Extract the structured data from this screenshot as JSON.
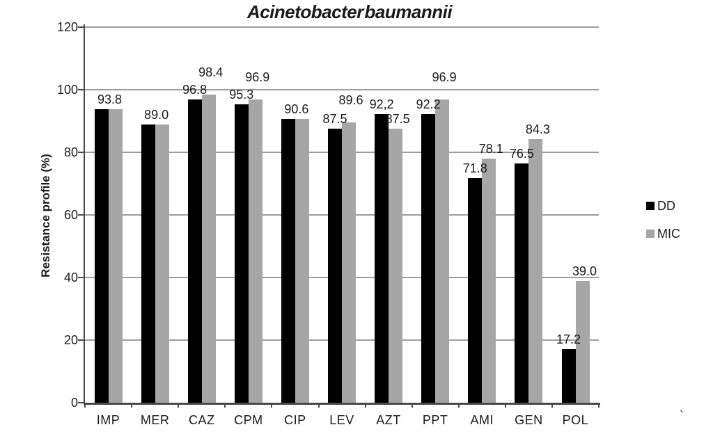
{
  "chart_data": {
    "type": "bar",
    "title": "Acinetobacter baumannii",
    "xlabel": "",
    "ylabel": "Resistance profile (%)",
    "ylim": [
      0,
      120
    ],
    "yticks": [
      0,
      20,
      40,
      60,
      80,
      100,
      120
    ],
    "grid": true,
    "legend_position": "right",
    "categories": [
      "IMP",
      "MER",
      "CAZ",
      "CPM",
      "CIP",
      "LEV",
      "AZT",
      "PPT",
      "AMI",
      "GEN",
      "POL"
    ],
    "series": [
      {
        "name": "DD",
        "color": "#000000",
        "values": [
          93.8,
          89.0,
          96.8,
          95.3,
          90.6,
          87.5,
          92.2,
          92.2,
          71.8,
          76.5,
          17.2
        ],
        "labels": [
          "93.8",
          "89.0",
          "96.8",
          "95.3",
          "90.6",
          "87.5",
          "92,2",
          "92.2",
          "71.8",
          "76.5",
          "17.2"
        ]
      },
      {
        "name": "MIC",
        "color": "#a6a6a6",
        "values": [
          93.8,
          89.0,
          98.4,
          96.9,
          90.6,
          89.6,
          87.5,
          96.9,
          78.1,
          84.3,
          39.0
        ],
        "labels": [
          "",
          "",
          "98.4",
          "96.9",
          "",
          "89.6",
          "87.5",
          "96.9",
          "78.1",
          "84.3",
          "39.0"
        ]
      }
    ]
  },
  "stray_mark": "`",
  "colors": {
    "background": "#ffffff",
    "gridline": "#9d9d9d",
    "axis": "#4a4a4a",
    "text": "#1a1a1a"
  }
}
